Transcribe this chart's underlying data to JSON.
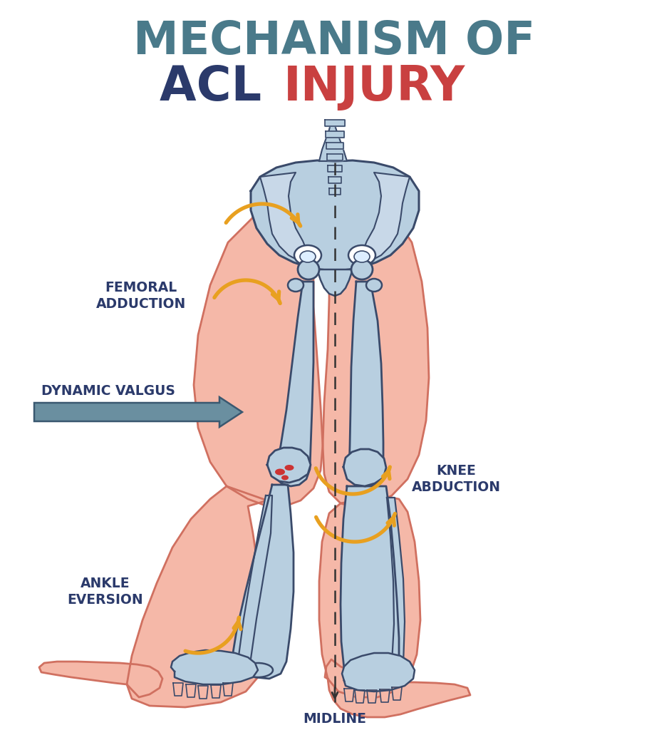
{
  "title_line1": "MECHANISM OF",
  "title_line2_part1": "ACL ",
  "title_line2_part2": "INJURY",
  "title_color1": "#4a7a8a",
  "title_color2": "#2b3a6b",
  "title_color3": "#c94040",
  "label_femoral": "FEMORAL\nADDUCTION",
  "label_dynamic": "DYNAMIC VALGUS",
  "label_knee": "KNEE\nABDUCTION",
  "label_ankle": "ANKLE\nEVERSION",
  "label_midline": "MIDLINE",
  "label_color": "#2b3a6b",
  "arrow_color": "#e8a020",
  "dynamic_arrow_color": "#6a8fa0",
  "bone_fill": "#b8cfe0",
  "bone_stroke": "#3a4a6a",
  "skin_fill": "#f5b8a8",
  "skin_stroke": "#d07060",
  "background": "#ffffff",
  "dashed_line_color": "#333333",
  "red_highlight": "#cc3333",
  "figsize": [
    9.39,
    10.24
  ],
  "dpi": 100
}
